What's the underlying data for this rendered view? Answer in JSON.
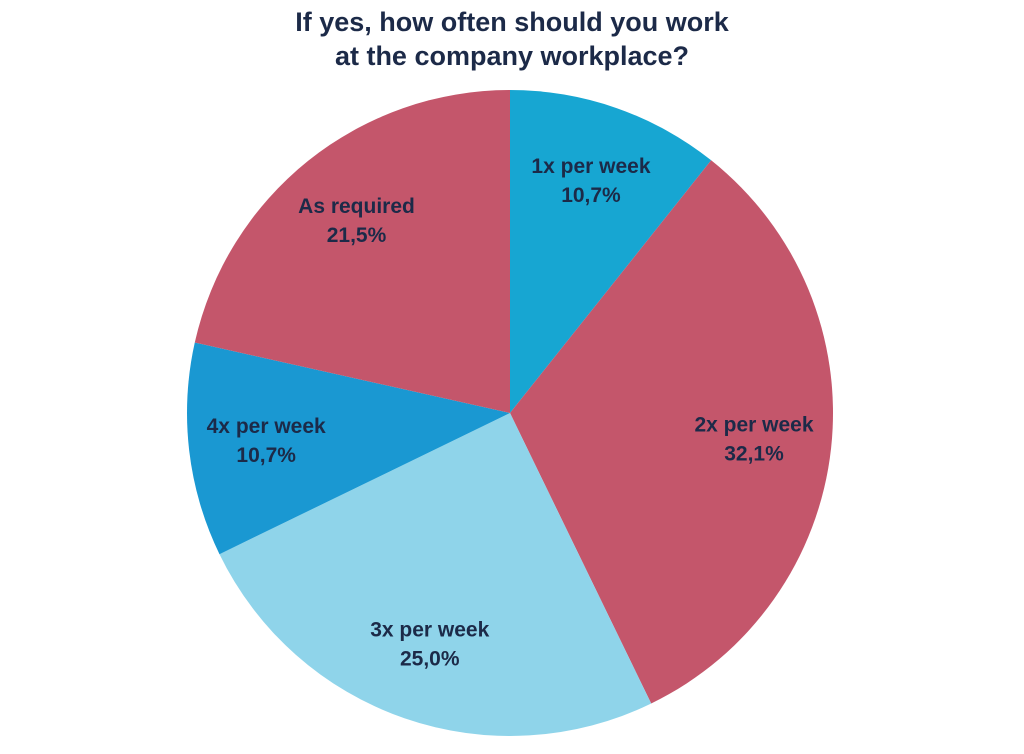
{
  "chart_data": {
    "type": "pie",
    "title": [
      "If yes, how often should you work",
      "at the company workplace?"
    ],
    "categories": [
      "1x per week",
      "2x per week",
      "3x per week",
      "4x per week",
      "As required"
    ],
    "values": [
      10.7,
      32.1,
      25.0,
      10.7,
      21.5
    ],
    "value_labels": [
      "10,7%",
      "32,1%",
      "25,0%",
      "10,7%",
      "21,5%"
    ],
    "colors": [
      "#17a6d2",
      "#c4566b",
      "#8fd4ea",
      "#1a98d2",
      "#c4566b"
    ]
  }
}
